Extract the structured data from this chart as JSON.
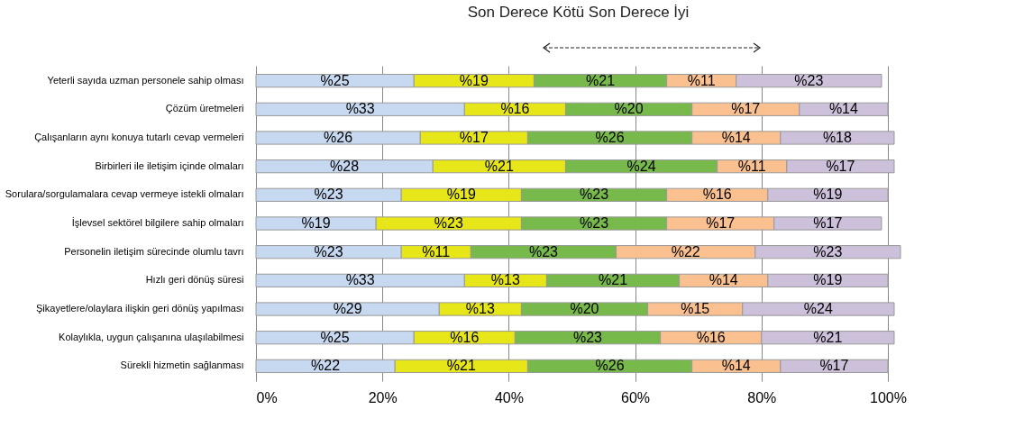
{
  "chart_data": {
    "type": "bar",
    "orientation": "horizontal",
    "stacked": true,
    "title": "Son Derece Kötü Son Derece İyi",
    "categories": [
      "Yeterli sayıda uzman personele sahip olması",
      "Çözüm üretmeleri",
      "Çalışanların aynı konuya tutarlı cevap vermeleri",
      "Birbirleri ile iletişim içinde olmaları",
      "Sorulara/sorgulamalara cevap vermeye istekli olmaları",
      "İşlevsel sektörel bilgilere sahip olmaları",
      "Personelin iletişim sürecinde olumlu tavrı",
      "Hızlı geri dönüş süresi",
      "Şikayetlere/olaylara ilişkin geri dönüş yapılması",
      "Kolaylıkla, uygun çalışanına ulaşılabilmesi",
      "Sürekli hizmetin sağlanması"
    ],
    "series": [
      {
        "color": "#c6d9f1",
        "values": [
          25,
          33,
          26,
          28,
          23,
          19,
          23,
          33,
          29,
          25,
          22
        ],
        "value_labels": [
          "%25",
          "%33",
          "%26",
          "%28",
          "%23",
          "%19",
          "%23",
          "%33",
          "%29",
          "%25",
          "%22"
        ]
      },
      {
        "color": "#e6e619",
        "values": [
          19,
          16,
          17,
          21,
          19,
          23,
          11,
          13,
          13,
          16,
          21
        ],
        "value_labels": [
          "%19",
          "%16",
          "%17",
          "%21",
          "%19",
          "%23",
          "%11",
          "%13",
          "%13",
          "%16",
          "%21"
        ]
      },
      {
        "color": "#77b94a",
        "values": [
          21,
          20,
          26,
          24,
          23,
          23,
          23,
          21,
          20,
          23,
          26
        ],
        "value_labels": [
          "%21",
          "%20",
          "%26",
          "%24",
          "%23",
          "%23",
          "%23",
          "%21",
          "%20",
          "%23",
          "%26"
        ]
      },
      {
        "color": "#fac090",
        "values": [
          11,
          17,
          14,
          11,
          16,
          17,
          22,
          14,
          15,
          16,
          14
        ],
        "value_labels": [
          "%11",
          "%17",
          "%14",
          "%11",
          "%16",
          "%17",
          "%22",
          "%14",
          "%15",
          "%16",
          "%14"
        ]
      },
      {
        "color": "#ccc0da",
        "values": [
          23,
          14,
          18,
          17,
          19,
          17,
          23,
          19,
          24,
          21,
          17
        ],
        "value_labels": [
          "%23",
          "%14",
          "%18",
          "%17",
          "%19",
          "%17",
          "%23",
          "%19",
          "%24",
          "%21",
          "%17"
        ]
      }
    ],
    "xlim": [
      0,
      102
    ],
    "xticks": [
      {
        "value": 0,
        "label": "0%"
      },
      {
        "value": 20,
        "label": "20%"
      },
      {
        "value": 40,
        "label": "40%"
      },
      {
        "value": 60,
        "label": "60%"
      },
      {
        "value": 80,
        "label": "80%"
      },
      {
        "value": 100,
        "label": "100%"
      }
    ],
    "grid": "x"
  }
}
